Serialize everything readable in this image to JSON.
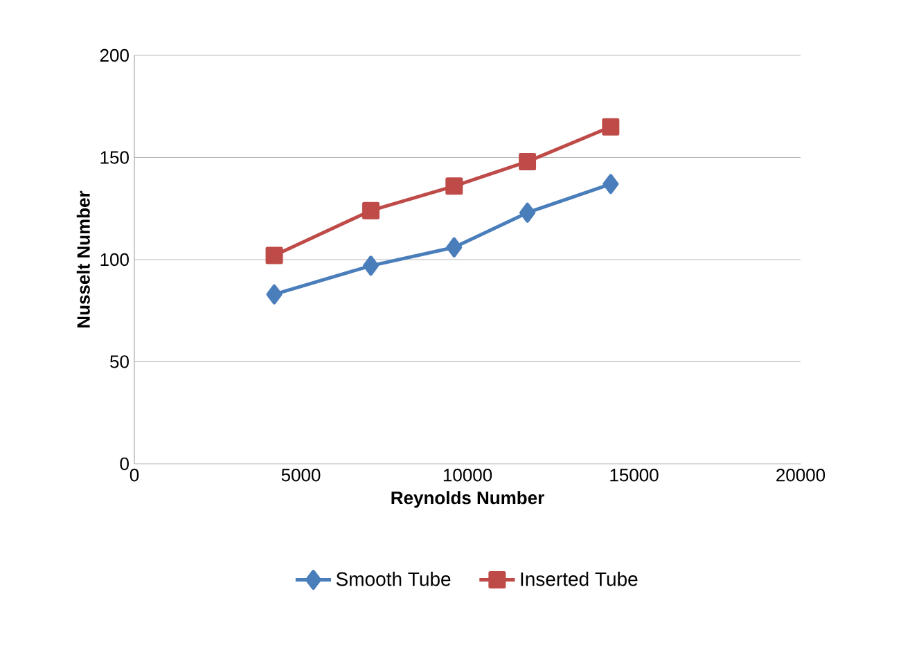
{
  "chart_data": {
    "type": "line",
    "xlabel": "Reynolds Number",
    "ylabel": "Nusselt  Number",
    "xlim": [
      0,
      20000
    ],
    "xticks": [
      0,
      5000,
      10000,
      15000,
      20000
    ],
    "ylim": [
      0,
      200
    ],
    "yticks": [
      0,
      50,
      100,
      150,
      200
    ],
    "grid": "y",
    "legend": "bottom",
    "series": [
      {
        "name": "Smooth Tube",
        "color": "#4a7ebb",
        "marker": "diamond",
        "x": [
          4200,
          7100,
          9600,
          11800,
          14300
        ],
        "values": [
          83,
          97,
          106,
          123,
          137
        ]
      },
      {
        "name": "Inserted Tube",
        "color": "#be4b48",
        "marker": "square",
        "x": [
          4200,
          7100,
          9600,
          11800,
          14300
        ],
        "values": [
          102,
          124,
          136,
          148,
          165
        ]
      }
    ]
  }
}
